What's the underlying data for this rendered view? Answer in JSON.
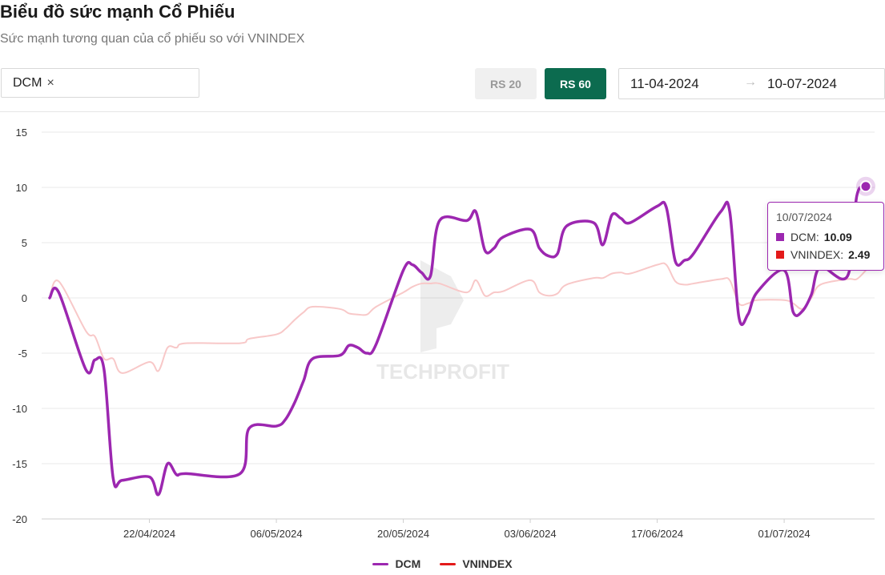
{
  "header": {
    "title": "Biểu đồ sức mạnh Cổ Phiếu",
    "subtitle": "Sức mạnh tương quan của cổ phiếu so với VNINDEX"
  },
  "controls": {
    "ticker": "DCM",
    "remove_icon": "×",
    "rs20_label": "RS 20",
    "rs60_label": "RS 60",
    "active_period": "RS 60",
    "date_start": "11-04-2024",
    "date_arrow": "→",
    "date_end": "10-07-2024"
  },
  "watermark": "TECHPROFIT",
  "tooltip": {
    "date": "10/07/2024",
    "rows": [
      {
        "label": "DCM:",
        "value": "10.09"
      },
      {
        "label": "VNINDEX:",
        "value": "2.49"
      }
    ]
  },
  "colors": {
    "dcm": "#9c27b0",
    "vnindex_line": "#f8c8c8",
    "vnindex_legend": "#e31a1a",
    "accent": "#0c6b4f"
  },
  "chart_data": {
    "type": "line",
    "ylim": [
      -20,
      15
    ],
    "y_ticks": [
      "15",
      "10",
      "5",
      "0",
      "-5",
      "-10",
      "-15",
      "-20"
    ],
    "x_ticks": [
      "22/04/2024",
      "06/05/2024",
      "20/05/2024",
      "03/06/2024",
      "17/06/2024",
      "01/07/2024"
    ],
    "x_tick_dates": [
      "2024-04-22",
      "2024-05-06",
      "2024-05-20",
      "2024-06-03",
      "2024-06-17",
      "2024-07-01"
    ],
    "x_range": [
      "2024-04-11",
      "2024-07-10"
    ],
    "series": [
      {
        "name": "DCM",
        "color": "#9c27b0",
        "points": [
          [
            "2024-04-11",
            0.0
          ],
          [
            "2024-04-12",
            0.5
          ],
          [
            "2024-04-15",
            -6.5
          ],
          [
            "2024-04-16",
            -5.6
          ],
          [
            "2024-04-17",
            -6.5
          ],
          [
            "2024-04-18",
            -16.3
          ],
          [
            "2024-04-19",
            -16.5
          ],
          [
            "2024-04-22",
            -16.2
          ],
          [
            "2024-04-23",
            -17.8
          ],
          [
            "2024-04-24",
            -15.0
          ],
          [
            "2024-04-25",
            -16.0
          ],
          [
            "2024-04-26",
            -15.9
          ],
          [
            "2024-05-02",
            -15.9
          ],
          [
            "2024-05-03",
            -11.8
          ],
          [
            "2024-05-06",
            -11.6
          ],
          [
            "2024-05-07",
            -11.0
          ],
          [
            "2024-05-08",
            -9.5
          ],
          [
            "2024-05-09",
            -7.5
          ],
          [
            "2024-05-10",
            -5.5
          ],
          [
            "2024-05-13",
            -5.2
          ],
          [
            "2024-05-14",
            -4.3
          ],
          [
            "2024-05-15",
            -4.5
          ],
          [
            "2024-05-16",
            -5.0
          ],
          [
            "2024-05-17",
            -4.2
          ],
          [
            "2024-05-20",
            2.5
          ],
          [
            "2024-05-21",
            3.0
          ],
          [
            "2024-05-22",
            2.3
          ],
          [
            "2024-05-23",
            2.0
          ],
          [
            "2024-05-24",
            7.0
          ],
          [
            "2024-05-27",
            7.0
          ],
          [
            "2024-05-28",
            7.8
          ],
          [
            "2024-05-29",
            4.3
          ],
          [
            "2024-05-30",
            4.5
          ],
          [
            "2024-05-31",
            5.5
          ],
          [
            "2024-06-03",
            6.2
          ],
          [
            "2024-06-04",
            4.5
          ],
          [
            "2024-06-05",
            3.8
          ],
          [
            "2024-06-06",
            4.0
          ],
          [
            "2024-06-07",
            6.5
          ],
          [
            "2024-06-10",
            6.8
          ],
          [
            "2024-06-11",
            4.8
          ],
          [
            "2024-06-12",
            7.5
          ],
          [
            "2024-06-13",
            7.2
          ],
          [
            "2024-06-14",
            6.8
          ],
          [
            "2024-06-17",
            8.3
          ],
          [
            "2024-06-18",
            8.2
          ],
          [
            "2024-06-19",
            3.3
          ],
          [
            "2024-06-20",
            3.4
          ],
          [
            "2024-06-21",
            4.0
          ],
          [
            "2024-06-24",
            7.8
          ],
          [
            "2024-06-25",
            7.8
          ],
          [
            "2024-06-26",
            -1.7
          ],
          [
            "2024-06-27",
            -1.5
          ],
          [
            "2024-06-28",
            0.5
          ],
          [
            "2024-07-01",
            2.5
          ],
          [
            "2024-07-02",
            -1.3
          ],
          [
            "2024-07-03",
            -1.2
          ],
          [
            "2024-07-04",
            0.3
          ],
          [
            "2024-07-05",
            2.8
          ],
          [
            "2024-07-08",
            2.0
          ],
          [
            "2024-07-09",
            9.2
          ],
          [
            "2024-07-10",
            10.09
          ]
        ]
      },
      {
        "name": "VNINDEX",
        "color": "#f8c8c8",
        "points": [
          [
            "2024-04-11",
            0.0
          ],
          [
            "2024-04-12",
            1.5
          ],
          [
            "2024-04-15",
            -3.0
          ],
          [
            "2024-04-16",
            -3.5
          ],
          [
            "2024-04-17",
            -5.5
          ],
          [
            "2024-04-18",
            -5.5
          ],
          [
            "2024-04-19",
            -6.8
          ],
          [
            "2024-04-22",
            -5.8
          ],
          [
            "2024-04-23",
            -6.6
          ],
          [
            "2024-04-24",
            -4.5
          ],
          [
            "2024-04-25",
            -4.5
          ],
          [
            "2024-04-26",
            -4.1
          ],
          [
            "2024-05-02",
            -4.1
          ],
          [
            "2024-05-03",
            -3.7
          ],
          [
            "2024-05-06",
            -3.3
          ],
          [
            "2024-05-07",
            -2.8
          ],
          [
            "2024-05-08",
            -2.0
          ],
          [
            "2024-05-09",
            -1.3
          ],
          [
            "2024-05-10",
            -0.8
          ],
          [
            "2024-05-13",
            -1.0
          ],
          [
            "2024-05-14",
            -1.4
          ],
          [
            "2024-05-15",
            -1.5
          ],
          [
            "2024-05-16",
            -1.5
          ],
          [
            "2024-05-17",
            -0.8
          ],
          [
            "2024-05-20",
            0.5
          ],
          [
            "2024-05-21",
            1.0
          ],
          [
            "2024-05-22",
            1.3
          ],
          [
            "2024-05-23",
            1.3
          ],
          [
            "2024-05-24",
            1.3
          ],
          [
            "2024-05-27",
            0.5
          ],
          [
            "2024-05-28",
            1.6
          ],
          [
            "2024-05-29",
            0.2
          ],
          [
            "2024-05-30",
            0.5
          ],
          [
            "2024-05-31",
            0.6
          ],
          [
            "2024-06-03",
            1.6
          ],
          [
            "2024-06-04",
            0.5
          ],
          [
            "2024-06-05",
            0.2
          ],
          [
            "2024-06-06",
            0.4
          ],
          [
            "2024-06-07",
            1.2
          ],
          [
            "2024-06-10",
            1.8
          ],
          [
            "2024-06-11",
            1.8
          ],
          [
            "2024-06-12",
            2.2
          ],
          [
            "2024-06-13",
            2.3
          ],
          [
            "2024-06-14",
            2.2
          ],
          [
            "2024-06-17",
            3.0
          ],
          [
            "2024-06-18",
            3.0
          ],
          [
            "2024-06-19",
            1.5
          ],
          [
            "2024-06-20",
            1.2
          ],
          [
            "2024-06-21",
            1.3
          ],
          [
            "2024-06-24",
            1.7
          ],
          [
            "2024-06-25",
            1.6
          ],
          [
            "2024-06-26",
            -0.5
          ],
          [
            "2024-06-27",
            -0.5
          ],
          [
            "2024-06-28",
            -0.2
          ],
          [
            "2024-07-01",
            -0.2
          ],
          [
            "2024-07-02",
            -0.5
          ],
          [
            "2024-07-03",
            -1.0
          ],
          [
            "2024-07-04",
            0.0
          ],
          [
            "2024-07-05",
            1.2
          ],
          [
            "2024-07-08",
            1.7
          ],
          [
            "2024-07-09",
            1.7
          ],
          [
            "2024-07-10",
            2.49
          ]
        ]
      }
    ],
    "legend": [
      "DCM",
      "VNINDEX"
    ],
    "legend_position": "bottom",
    "grid": true
  }
}
